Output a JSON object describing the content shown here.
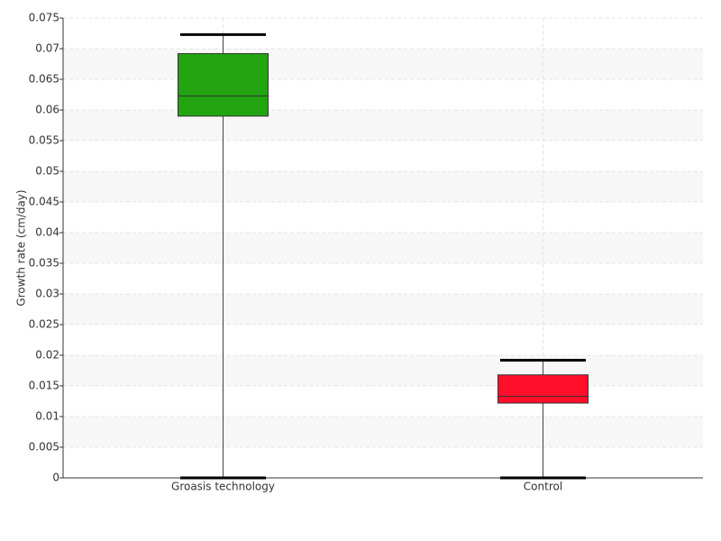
{
  "chart_data": {
    "type": "box",
    "y_label": "Growth rate (cm/day)",
    "categories": [
      "Groasis technology",
      "Control"
    ],
    "boxes": [
      {
        "min": 0,
        "q1": 0.059,
        "median": 0.0623,
        "q3": 0.0692,
        "max": 0.0723,
        "color": "#22a511"
      },
      {
        "min": 0,
        "q1": 0.0122,
        "median": 0.0133,
        "q3": 0.0168,
        "max": 0.0192,
        "color": "#ff0f2a"
      }
    ],
    "ylim": [
      0,
      0.075
    ],
    "yticks": [
      0,
      0.005,
      0.01,
      0.015,
      0.02,
      0.025,
      0.03,
      0.035,
      0.04,
      0.045,
      0.05,
      0.055,
      0.06,
      0.065,
      0.07,
      0.075
    ],
    "grid": true
  }
}
